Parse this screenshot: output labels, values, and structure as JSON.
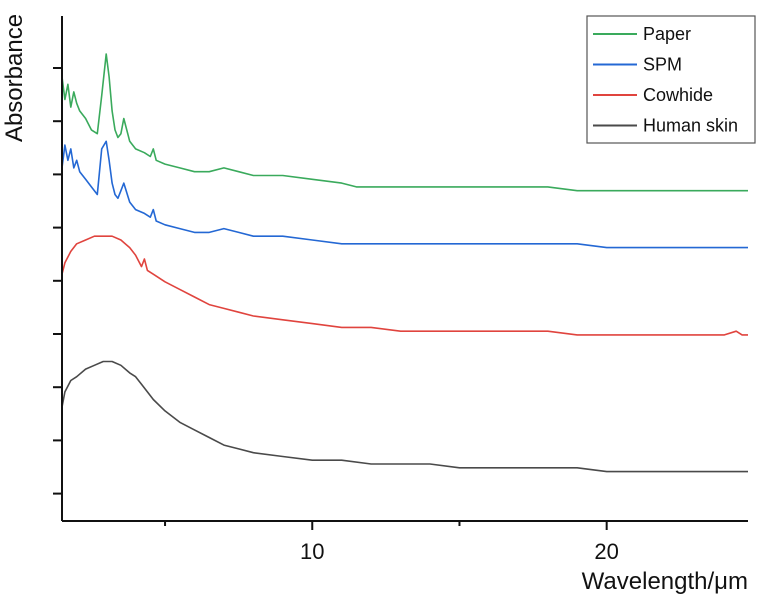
{
  "chart_data": {
    "type": "line",
    "xlabel": "Wavelength/μm",
    "ylabel": "Absorbance",
    "xlim": [
      1.5,
      24.8
    ],
    "x_ticks": [
      10,
      20
    ],
    "y_ticks_show_labels": false,
    "grid": false,
    "legend_position": "top-right",
    "series": [
      {
        "name": "Paper",
        "color": "#3aaa5c",
        "x": [
          1.5,
          1.6,
          1.7,
          1.8,
          1.9,
          2.0,
          2.1,
          2.3,
          2.5,
          2.7,
          2.85,
          3.0,
          3.1,
          3.2,
          3.3,
          3.4,
          3.5,
          3.6,
          3.8,
          4.0,
          4.3,
          4.5,
          4.6,
          4.7,
          5.0,
          5.5,
          6.0,
          6.5,
          7.0,
          7.5,
          8.0,
          8.5,
          9.0,
          10.0,
          11.0,
          11.5,
          12.0,
          13.0,
          14.0,
          15.0,
          16.0,
          17.0,
          18.0,
          19.0,
          20.0,
          21.0,
          22.0,
          23.0,
          24.0,
          24.8
        ],
        "values": [
          0.62,
          0.56,
          0.6,
          0.54,
          0.58,
          0.55,
          0.53,
          0.51,
          0.48,
          0.47,
          0.57,
          0.68,
          0.62,
          0.53,
          0.48,
          0.46,
          0.47,
          0.51,
          0.45,
          0.43,
          0.42,
          0.41,
          0.43,
          0.4,
          0.39,
          0.38,
          0.37,
          0.37,
          0.38,
          0.37,
          0.36,
          0.36,
          0.36,
          0.35,
          0.34,
          0.33,
          0.33,
          0.33,
          0.33,
          0.33,
          0.33,
          0.33,
          0.33,
          0.32,
          0.32,
          0.32,
          0.32,
          0.32,
          0.32,
          0.32
        ]
      },
      {
        "name": "SPM",
        "color": "#2468d4",
        "x": [
          1.5,
          1.6,
          1.7,
          1.8,
          1.9,
          2.0,
          2.1,
          2.3,
          2.5,
          2.7,
          2.85,
          3.0,
          3.1,
          3.2,
          3.3,
          3.4,
          3.5,
          3.6,
          3.8,
          4.0,
          4.3,
          4.5,
          4.6,
          4.7,
          5.0,
          5.5,
          6.0,
          6.5,
          7.0,
          7.5,
          8.0,
          8.5,
          9.0,
          10.0,
          11.0,
          11.5,
          12.0,
          13.0,
          14.0,
          15.0,
          16.0,
          17.0,
          18.0,
          19.0,
          20.0,
          21.0,
          22.0,
          23.0,
          24.0,
          24.8
        ],
        "values": [
          0.38,
          0.44,
          0.4,
          0.43,
          0.38,
          0.4,
          0.37,
          0.35,
          0.33,
          0.31,
          0.43,
          0.45,
          0.4,
          0.34,
          0.31,
          0.3,
          0.32,
          0.34,
          0.29,
          0.27,
          0.26,
          0.25,
          0.27,
          0.24,
          0.23,
          0.22,
          0.21,
          0.21,
          0.22,
          0.21,
          0.2,
          0.2,
          0.2,
          0.19,
          0.18,
          0.18,
          0.18,
          0.18,
          0.18,
          0.18,
          0.18,
          0.18,
          0.18,
          0.18,
          0.17,
          0.17,
          0.17,
          0.17,
          0.17,
          0.17
        ]
      },
      {
        "name": "Cowhide",
        "color": "#e0443e",
        "x": [
          1.5,
          1.6,
          1.8,
          2.0,
          2.3,
          2.6,
          2.9,
          3.2,
          3.5,
          3.8,
          4.0,
          4.2,
          4.3,
          4.4,
          4.6,
          5.0,
          5.5,
          6.0,
          6.5,
          7.0,
          7.5,
          8.0,
          9.0,
          10.0,
          11.0,
          12.0,
          13.0,
          14.0,
          15.0,
          16.0,
          17.0,
          18.0,
          19.0,
          20.0,
          21.0,
          22.0,
          23.0,
          24.0,
          24.4,
          24.6,
          24.8
        ],
        "values": [
          0.1,
          0.13,
          0.16,
          0.18,
          0.19,
          0.2,
          0.2,
          0.2,
          0.19,
          0.17,
          0.15,
          0.12,
          0.14,
          0.11,
          0.1,
          0.08,
          0.06,
          0.04,
          0.02,
          0.01,
          0.0,
          -0.01,
          -0.02,
          -0.03,
          -0.04,
          -0.04,
          -0.05,
          -0.05,
          -0.05,
          -0.05,
          -0.05,
          -0.05,
          -0.06,
          -0.06,
          -0.06,
          -0.06,
          -0.06,
          -0.06,
          -0.05,
          -0.06,
          -0.06
        ]
      },
      {
        "name": "Human skin",
        "color": "#4a4a4a",
        "x": [
          1.5,
          1.6,
          1.8,
          2.0,
          2.3,
          2.6,
          2.9,
          3.2,
          3.5,
          3.8,
          4.0,
          4.2,
          4.4,
          4.6,
          5.0,
          5.5,
          6.0,
          6.5,
          7.0,
          7.5,
          8.0,
          9.0,
          10.0,
          11.0,
          12.0,
          13.0,
          14.0,
          15.0,
          16.0,
          17.0,
          18.0,
          19.0,
          20.0,
          21.0,
          22.0,
          23.0,
          24.0,
          24.8
        ],
        "values": [
          -0.25,
          -0.21,
          -0.18,
          -0.17,
          -0.15,
          -0.14,
          -0.13,
          -0.13,
          -0.14,
          -0.16,
          -0.17,
          -0.19,
          -0.21,
          -0.23,
          -0.26,
          -0.29,
          -0.31,
          -0.33,
          -0.35,
          -0.36,
          -0.37,
          -0.38,
          -0.39,
          -0.39,
          -0.4,
          -0.4,
          -0.4,
          -0.41,
          -0.41,
          -0.41,
          -0.41,
          -0.41,
          -0.42,
          -0.42,
          -0.42,
          -0.42,
          -0.42,
          -0.42
        ]
      }
    ],
    "ylim": [
      -0.55,
      0.78
    ]
  }
}
